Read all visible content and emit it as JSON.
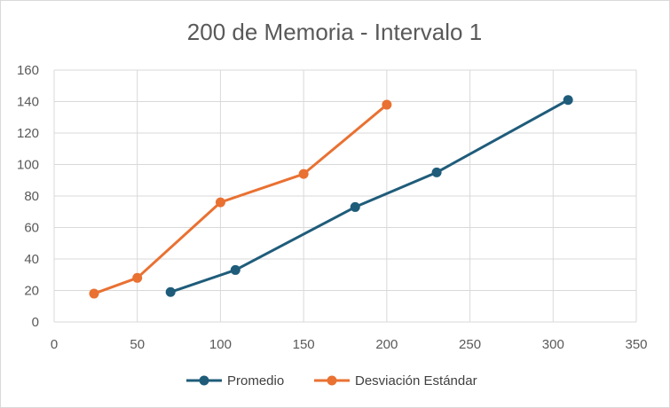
{
  "chart_data": {
    "type": "scatter",
    "title": "200 de Memoria - Intervalo 1",
    "xlabel": "",
    "ylabel": "",
    "xlim": [
      0,
      350
    ],
    "ylim": [
      0,
      160
    ],
    "xticks": [
      0,
      50,
      100,
      150,
      200,
      250,
      300,
      350
    ],
    "yticks": [
      0,
      20,
      40,
      60,
      80,
      100,
      120,
      140,
      160
    ],
    "grid": true,
    "legend_position": "bottom",
    "series": [
      {
        "name": "Promedio",
        "color": "#1f5c7a",
        "points": [
          [
            70,
            19
          ],
          [
            109,
            33
          ],
          [
            181,
            73
          ],
          [
            230,
            95
          ],
          [
            309,
            141
          ]
        ]
      },
      {
        "name": "Desviación Estándar",
        "color": "#e97132",
        "points": [
          [
            24,
            18
          ],
          [
            50,
            28
          ],
          [
            100,
            76
          ],
          [
            150,
            94
          ],
          [
            200,
            138
          ]
        ]
      }
    ]
  }
}
